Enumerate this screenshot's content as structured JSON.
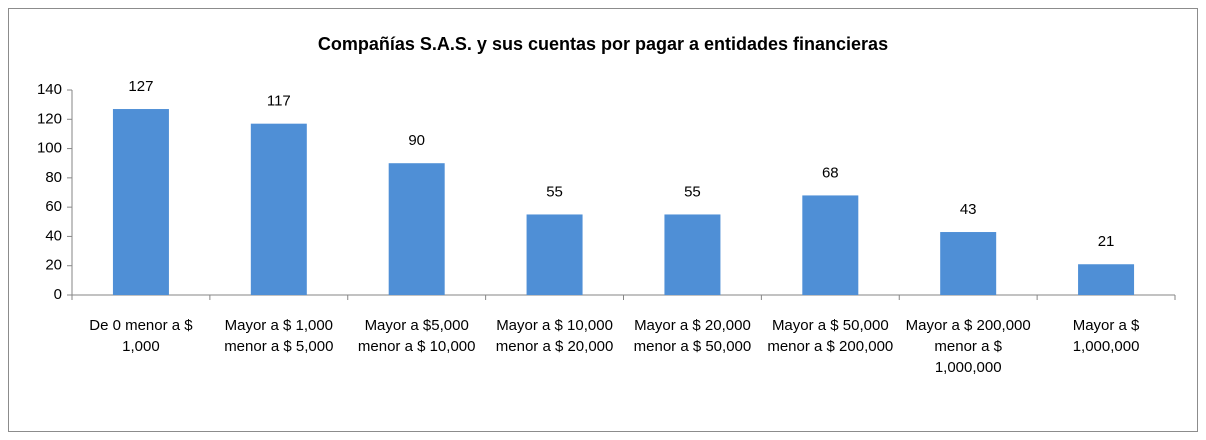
{
  "chart_data": {
    "type": "bar",
    "title": "Compañías S.A.S. y sus cuentas por pagar a entidades financieras",
    "categories": [
      "De 0 menor a $ 1,000",
      "Mayor a $ 1,000 menor a $ 5,000",
      "Mayor a $5,000 menor a $ 10,000",
      "Mayor a $ 10,000 menor a $ 20,000",
      "Mayor a $ 20,000 menor a $ 50,000",
      "Mayor a $ 50,000 menor a $ 200,000",
      "Mayor a $ 200,000 menor a $ 1,000,000",
      "Mayor a $ 1,000,000"
    ],
    "values": [
      127,
      117,
      90,
      55,
      55,
      68,
      43,
      21
    ],
    "color": "#4f8fd6",
    "ylim": [
      0,
      140
    ],
    "yticks": [
      0,
      20,
      40,
      60,
      80,
      100,
      120,
      140
    ],
    "grid": false
  }
}
